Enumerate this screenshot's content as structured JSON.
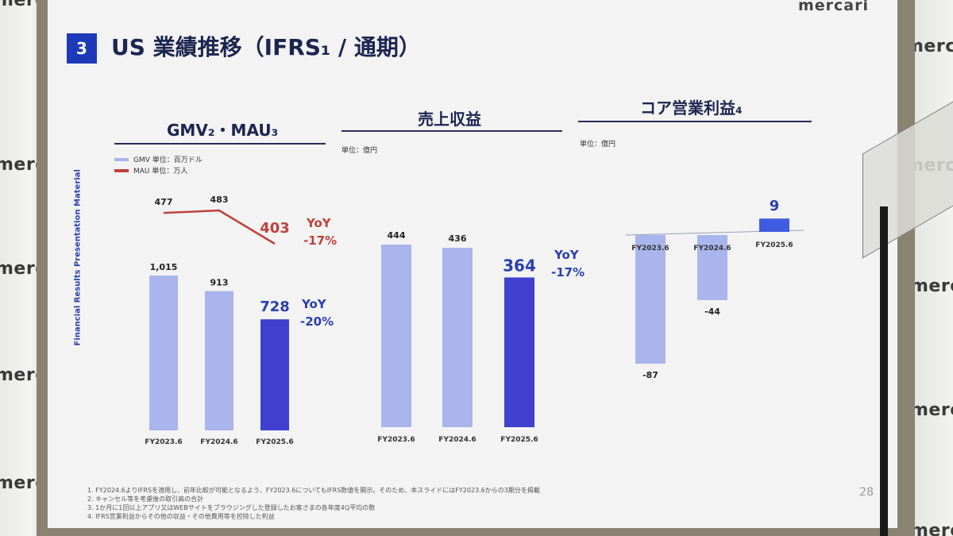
{
  "slide": {
    "brand": "mercari",
    "section_number": "3",
    "title": "US 業績推移（IFRS₁ / 通期）",
    "side_label": "Financial Results Presentation Material",
    "page_number": "28",
    "wall_logos": [
      "merca",
      "merca",
      "merca",
      "merca",
      "merca",
      "merc",
      "merc",
      "merc",
      "merc",
      "merc"
    ]
  },
  "panels": {
    "gmv": {
      "title": "GMV₂・MAU₃",
      "legend_gmv": "GMV 単位：百万ドル",
      "legend_mau": "MAU 単位：万人"
    },
    "revenue": {
      "title": "売上収益",
      "unit": "単位：億円"
    },
    "core_op": {
      "title": "コア営業利益₄",
      "unit": "単位：億円"
    }
  },
  "chart_data": [
    {
      "type": "bar",
      "name_ref": "gmv",
      "categories": [
        "FY2023.6",
        "FY2024.6",
        "FY2025.6"
      ],
      "series": [
        {
          "name": "GMV",
          "values": [
            1015,
            913,
            728
          ]
        }
      ],
      "value_labels": [
        "1,015",
        "913",
        "728"
      ],
      "yoy_label": "YoY",
      "yoy_value": "-20%",
      "colors": [
        "#a9b5ec",
        "#a9b5ec",
        "#3f3fd0"
      ]
    },
    {
      "type": "line",
      "name_ref": "mau",
      "categories": [
        "FY2023.6",
        "FY2024.6",
        "FY2025.6"
      ],
      "series": [
        {
          "name": "MAU",
          "values": [
            477,
            483,
            403
          ]
        }
      ],
      "value_labels": [
        "477",
        "483",
        "403"
      ],
      "yoy_label": "YoY",
      "yoy_value": "-17%",
      "color": "#c0413c"
    },
    {
      "type": "bar",
      "name_ref": "revenue",
      "categories": [
        "FY2023.6",
        "FY2024.6",
        "FY2025.6"
      ],
      "series": [
        {
          "name": "売上収益",
          "values": [
            444,
            436,
            364
          ]
        }
      ],
      "value_labels": [
        "444",
        "436",
        "364"
      ],
      "yoy_label": "YoY",
      "yoy_value": "-17%",
      "colors": [
        "#a9b5ec",
        "#a9b5ec",
        "#3f3fd0"
      ]
    },
    {
      "type": "bar",
      "name_ref": "core_op",
      "categories": [
        "FY2023.6",
        "FY2024.6",
        "FY2025.6"
      ],
      "series": [
        {
          "name": "コア営業利益",
          "values": [
            -87,
            -44,
            9
          ]
        }
      ],
      "value_labels": [
        "-87",
        "-44",
        "9"
      ],
      "colors": [
        "#a9b5ec",
        "#a9b5ec",
        "#3f5ce0"
      ]
    }
  ],
  "footnotes": [
    "1. FY2024.6よりIFRSを適用し、前年比較が可能となるよう、FY2023.6についてもIFRS数値を開示。そのため、本スライドにはFY2023.6からの3期分を掲載",
    "2. キャンセル等を考慮後の取引高の合計",
    "3. 1か月に1回以上アプリ又はWEBサイトをブラウジングした登録したお客さまの各年度4Q平均の数",
    "4. IFRS営業利益からその他の収益・その他費用等を控除した利益"
  ]
}
